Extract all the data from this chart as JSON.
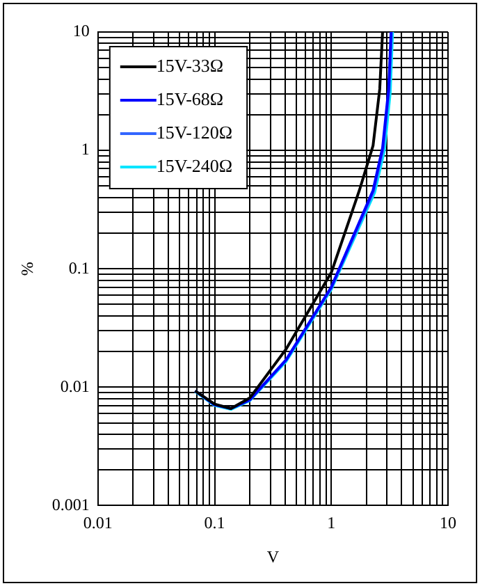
{
  "chart_data": {
    "type": "line",
    "xlabel": "V",
    "ylabel": "%",
    "log": "xy",
    "xlim": [
      0.01,
      10
    ],
    "ylim": [
      0.001,
      10
    ],
    "xticks": [
      {
        "value": 0.01,
        "label": "0.01"
      },
      {
        "value": 0.1,
        "label": "0.1"
      },
      {
        "value": 1,
        "label": "1"
      },
      {
        "value": 10,
        "label": "10"
      }
    ],
    "yticks": [
      {
        "value": 0.001,
        "label": "0.001"
      },
      {
        "value": 0.01,
        "label": "0.01"
      },
      {
        "value": 0.1,
        "label": "0.1"
      },
      {
        "value": 1,
        "label": "1"
      },
      {
        "value": 10,
        "label": "10"
      }
    ],
    "grid": true,
    "legend": "top left",
    "marker": "none",
    "line_style": "solid",
    "series": [
      {
        "name": "15V-33Ω",
        "color": "#000000",
        "x": [
          0.068,
          0.1,
          0.138,
          0.2,
          0.41,
          1.0,
          1.74,
          2.28,
          2.6,
          2.75
        ],
        "values": [
          0.0093,
          0.0072,
          0.0066,
          0.0081,
          0.021,
          0.093,
          0.46,
          1.1,
          3.3,
          10
        ]
      },
      {
        "name": "15V-68Ω",
        "color": "#0000ff",
        "x": [
          0.068,
          0.1,
          0.138,
          0.2,
          0.41,
          1.0,
          2.28,
          2.75,
          3.1,
          3.25
        ],
        "values": [
          0.0093,
          0.0071,
          0.0066,
          0.0078,
          0.017,
          0.07,
          0.46,
          1.05,
          3.3,
          10
        ]
      },
      {
        "name": "15V-120Ω",
        "color": "#3366ff",
        "x": [
          0.068,
          0.1,
          0.138,
          0.2,
          0.41,
          1.0,
          2.3,
          2.78,
          3.12,
          3.28
        ],
        "values": [
          0.0093,
          0.0071,
          0.0066,
          0.0078,
          0.017,
          0.069,
          0.45,
          1.03,
          3.2,
          10
        ]
      },
      {
        "name": "15V-240Ω",
        "color": "#00e5ff",
        "x": [
          0.068,
          0.1,
          0.138,
          0.2,
          0.41,
          1.0,
          2.35,
          2.85,
          3.2,
          3.35
        ],
        "values": [
          0.0092,
          0.007,
          0.0065,
          0.0077,
          0.0165,
          0.067,
          0.44,
          1.0,
          3.1,
          10
        ]
      }
    ]
  }
}
